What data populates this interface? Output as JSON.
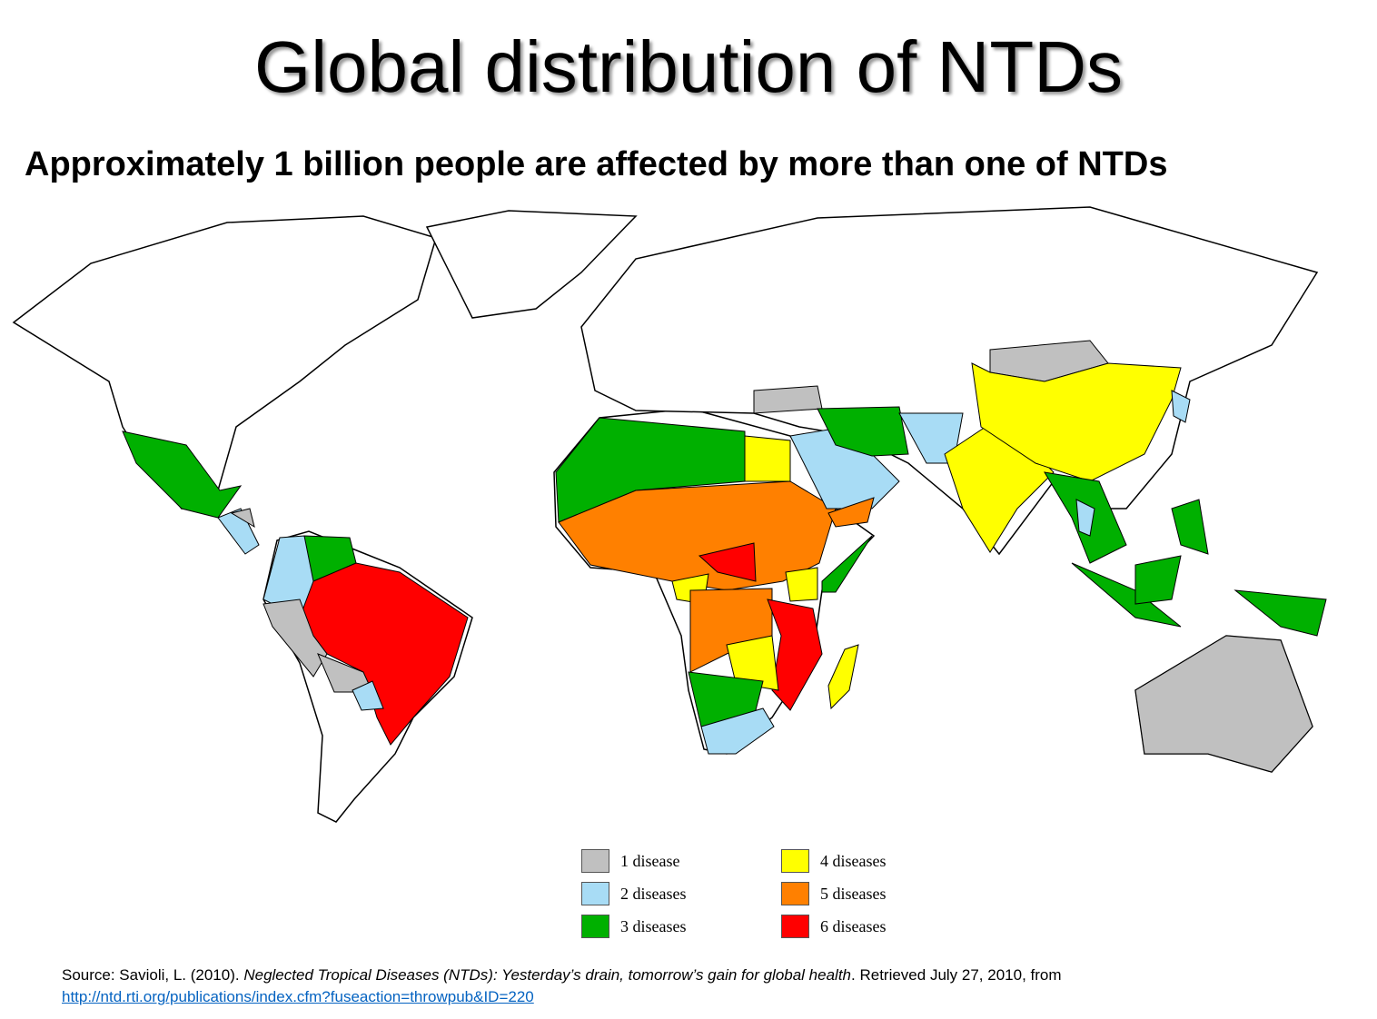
{
  "header": {
    "title": "Global distribution of NTDs",
    "subtitle": "Approximately 1 billion people are affected by more than one of NTDs"
  },
  "legend": [
    {
      "label": "1 disease",
      "color": "#c0c0c0"
    },
    {
      "label": "2 diseases",
      "color": "#a8dcf5"
    },
    {
      "label": "3 diseases",
      "color": "#00b000"
    },
    {
      "label": "4 diseases",
      "color": "#ffff00"
    },
    {
      "label": "5 diseases",
      "color": "#ff8000"
    },
    {
      "label": "6 diseases",
      "color": "#ff0000"
    }
  ],
  "source": {
    "prefix": "Source: Savioli, L. (2010).",
    "work": "Neglected Tropical Diseases (NTDs): Yesterday’s drain, tomorrow’s gain for global health",
    "suffix": ". Retrieved July 27, 2010, from",
    "link": "http://ntd.rti.org/publications/index.cfm?fuseaction=throwpub&ID=220"
  }
}
